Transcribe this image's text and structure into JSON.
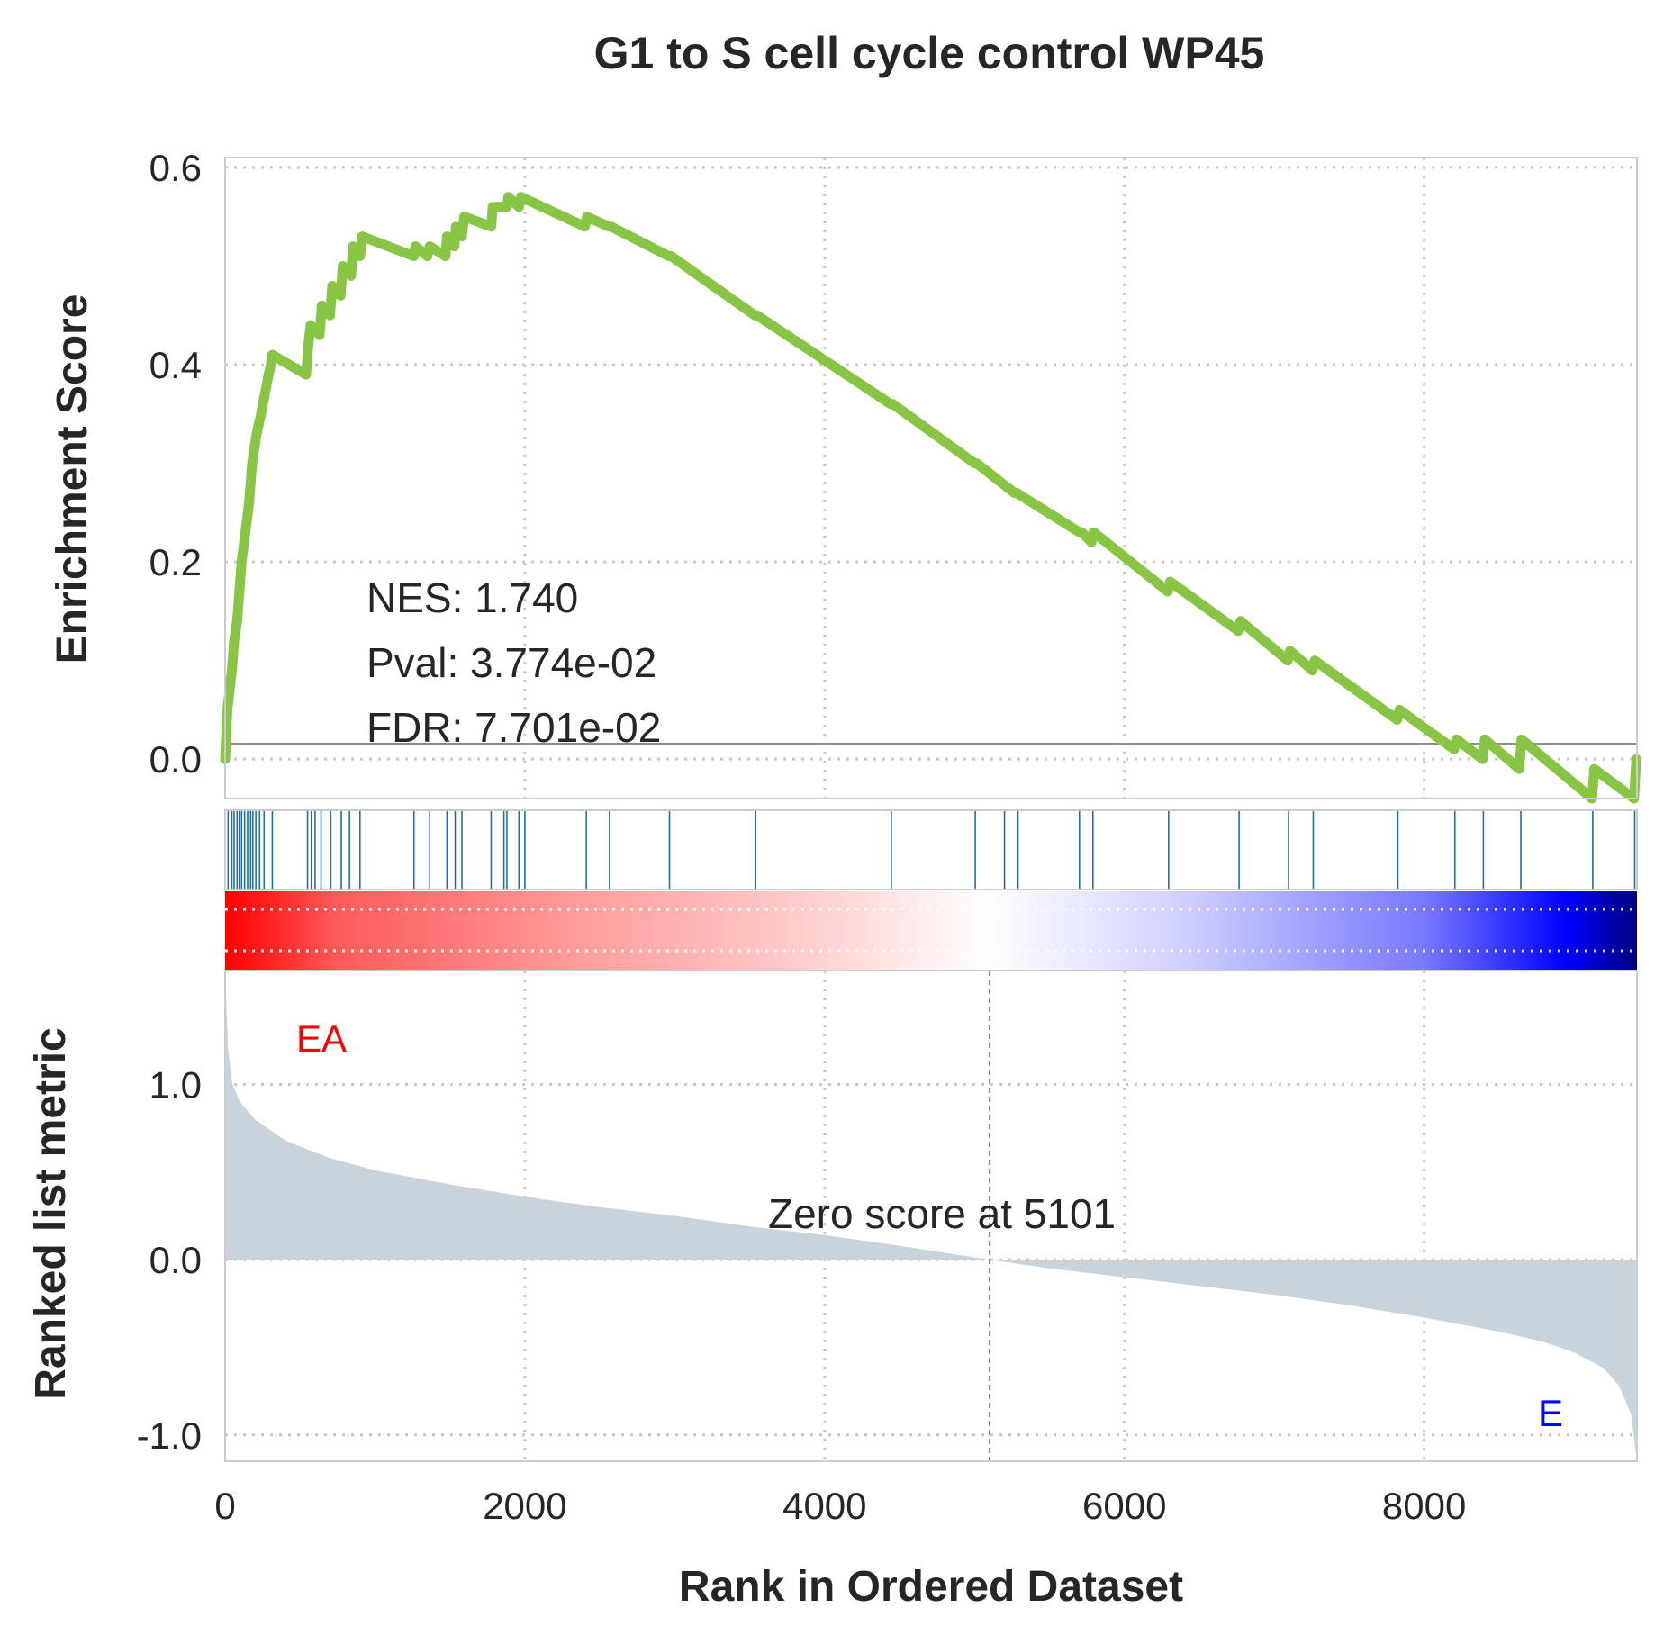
{
  "chart_data": {
    "type": "line",
    "title": "G1 to S cell cycle control WP45",
    "xlabel": "Rank in Ordered Dataset",
    "xlim": [
      0,
      9420
    ],
    "x_ticks": [
      0,
      2000,
      4000,
      6000,
      8000
    ],
    "x_tick_labels": [
      "0",
      "2000",
      "4000",
      "6000",
      "8000"
    ],
    "grid": true,
    "enrichment_panel": {
      "ylabel": "Enrichment Score",
      "ylim": [
        -0.04,
        0.61
      ],
      "y_ticks": [
        0.0,
        0.2,
        0.4,
        0.6
      ],
      "y_tick_labels": [
        "0.0",
        "0.2",
        "0.4",
        "0.6"
      ],
      "line_color": "#88c544",
      "series": [
        {
          "x": [
            0,
            15,
            45,
            60,
            80,
            110,
            135,
            160,
            180,
            210,
            240,
            265,
            290,
            305,
            315,
            540,
            555,
            570,
            630,
            645,
            700,
            715,
            770,
            785,
            840,
            855,
            900,
            915,
            1260,
            1270,
            1350,
            1365,
            1470,
            1480,
            1530,
            1540,
            1580,
            1595,
            1775,
            1785,
            1880,
            1890,
            1960,
            1975,
            2400,
            2415,
            2560,
            2575,
            2960,
            2975,
            3535,
            3550,
            4440,
            4455,
            5000,
            5015,
            5265,
            5280,
            5700,
            5715,
            5780,
            5795,
            6290,
            6305,
            6760,
            6775,
            7090,
            7105,
            7255,
            7270,
            7820,
            7835,
            8200,
            8215,
            8390,
            8405,
            8635,
            8650,
            9120,
            9135,
            9400,
            9415
          ],
          "y": [
            0.0,
            0.05,
            0.09,
            0.12,
            0.14,
            0.2,
            0.23,
            0.26,
            0.3,
            0.33,
            0.35,
            0.37,
            0.39,
            0.4,
            0.41,
            0.39,
            0.42,
            0.44,
            0.43,
            0.46,
            0.45,
            0.48,
            0.47,
            0.5,
            0.49,
            0.52,
            0.51,
            0.53,
            0.51,
            0.52,
            0.51,
            0.52,
            0.51,
            0.53,
            0.52,
            0.54,
            0.53,
            0.55,
            0.54,
            0.56,
            0.56,
            0.57,
            0.56,
            0.57,
            0.54,
            0.55,
            0.54,
            0.54,
            0.51,
            0.51,
            0.45,
            0.45,
            0.36,
            0.36,
            0.3,
            0.3,
            0.27,
            0.27,
            0.23,
            0.23,
            0.22,
            0.23,
            0.17,
            0.18,
            0.13,
            0.14,
            0.1,
            0.11,
            0.09,
            0.1,
            0.04,
            0.05,
            0.01,
            0.02,
            0.0,
            0.02,
            -0.01,
            0.02,
            -0.04,
            -0.01,
            -0.04,
            0.0
          ]
        }
      ]
    },
    "hits": [
      20,
      45,
      60,
      80,
      95,
      110,
      130,
      150,
      170,
      185,
      205,
      230,
      260,
      315,
      550,
      575,
      600,
      640,
      705,
      775,
      830,
      900,
      1260,
      1365,
      1480,
      1535,
      1580,
      1775,
      1860,
      1880,
      1960,
      2000,
      2410,
      2565,
      2965,
      3540,
      4445,
      5005,
      5200,
      5290,
      5700,
      5790,
      6295,
      6765,
      7095,
      7260,
      7825,
      8205,
      8395,
      8645,
      9125,
      9405
    ],
    "hit_color": "#1f6fa8",
    "ranked_panel": {
      "ylabel": "Ranked list metric",
      "ylim": [
        -1.15,
        1.65
      ],
      "y_ticks": [
        -1.0,
        0.0,
        1.0
      ],
      "y_tick_labels": [
        "-1.0",
        "0.0",
        "1.0"
      ],
      "fill_color": "#c9d3dc",
      "x": [
        0,
        20,
        50,
        100,
        200,
        400,
        700,
        1000,
        1500,
        2000,
        2500,
        3000,
        3500,
        4000,
        4500,
        5101,
        5500,
        6000,
        6500,
        7000,
        7500,
        8000,
        8500,
        8800,
        9000,
        9200,
        9300,
        9380,
        9420
      ],
      "y": [
        1.62,
        1.2,
        1.0,
        0.9,
        0.8,
        0.68,
        0.58,
        0.51,
        0.43,
        0.36,
        0.3,
        0.25,
        0.19,
        0.14,
        0.08,
        0.0,
        -0.05,
        -0.1,
        -0.15,
        -0.2,
        -0.26,
        -0.33,
        -0.41,
        -0.47,
        -0.53,
        -0.62,
        -0.72,
        -0.88,
        -1.15
      ],
      "zero_score_rank": 5101,
      "zero_score_text": "Zero score at 5101",
      "phenotype_pos": {
        "label": "EA",
        "color": "#ff0000"
      },
      "phenotype_neg": {
        "label": "E",
        "color": "#0000ff"
      }
    },
    "annotations": {
      "nes": "NES: 1.740",
      "pval": "Pval: 3.774e-02",
      "fdr": "FDR: 7.701e-02"
    }
  }
}
